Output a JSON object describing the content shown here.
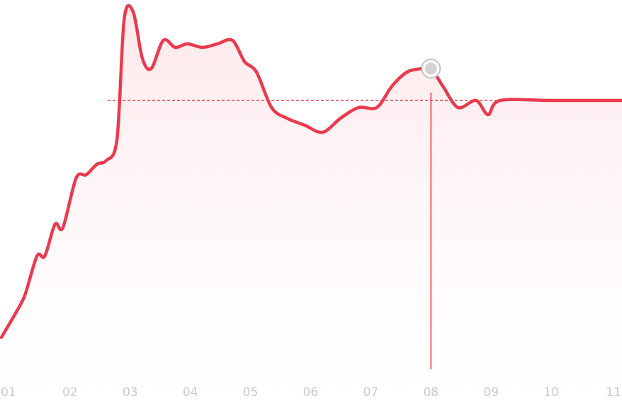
{
  "chart_data": {
    "type": "area",
    "title": "",
    "xlabel": "",
    "ylabel": "",
    "x_tick_labels": [
      "01",
      "02",
      "03",
      "04",
      "05",
      "06",
      "07",
      "08",
      "09",
      "10",
      "11"
    ],
    "xlim": [
      1,
      11
    ],
    "ylim": [
      0,
      100
    ],
    "grid": false,
    "legend": "none",
    "colors": {
      "line": "#ea3a4d",
      "fill_top": "#fde3e6",
      "fill_bottom": "#ffffff",
      "reference_line": "#ea3a4d",
      "marker": "#d3d3d3",
      "marker_ring": "#c4c4c4",
      "tick_label": "#c9c9c9"
    },
    "reference_line": {
      "value": 76
    },
    "highlight": {
      "x": 8.0,
      "y": 85
    },
    "series": [
      {
        "values": [
          [
            1.0,
            9
          ],
          [
            1.1,
            16
          ],
          [
            1.25,
            21
          ],
          [
            1.45,
            32
          ],
          [
            1.58,
            32
          ],
          [
            1.75,
            41
          ],
          [
            1.88,
            40
          ],
          [
            2.1,
            54
          ],
          [
            2.27,
            55
          ],
          [
            2.45,
            58
          ],
          [
            2.6,
            59
          ],
          [
            2.78,
            65
          ],
          [
            2.9,
            99
          ],
          [
            3.05,
            101
          ],
          [
            3.2,
            88
          ],
          [
            3.35,
            85
          ],
          [
            3.55,
            93
          ],
          [
            3.75,
            91
          ],
          [
            3.95,
            92
          ],
          [
            4.2,
            91
          ],
          [
            4.45,
            92
          ],
          [
            4.7,
            93
          ],
          [
            4.9,
            87
          ],
          [
            5.1,
            84
          ],
          [
            5.35,
            74
          ],
          [
            5.6,
            71
          ],
          [
            5.9,
            69
          ],
          [
            6.2,
            67
          ],
          [
            6.5,
            71
          ],
          [
            6.8,
            74
          ],
          [
            7.1,
            74
          ],
          [
            7.35,
            80
          ],
          [
            7.6,
            84
          ],
          [
            7.85,
            85
          ],
          [
            8.0,
            85
          ],
          [
            8.2,
            80
          ],
          [
            8.45,
            74
          ],
          [
            8.75,
            76
          ],
          [
            8.95,
            72
          ],
          [
            9.15,
            76
          ],
          [
            10.0,
            76
          ],
          [
            11.0,
            76
          ]
        ]
      }
    ]
  }
}
